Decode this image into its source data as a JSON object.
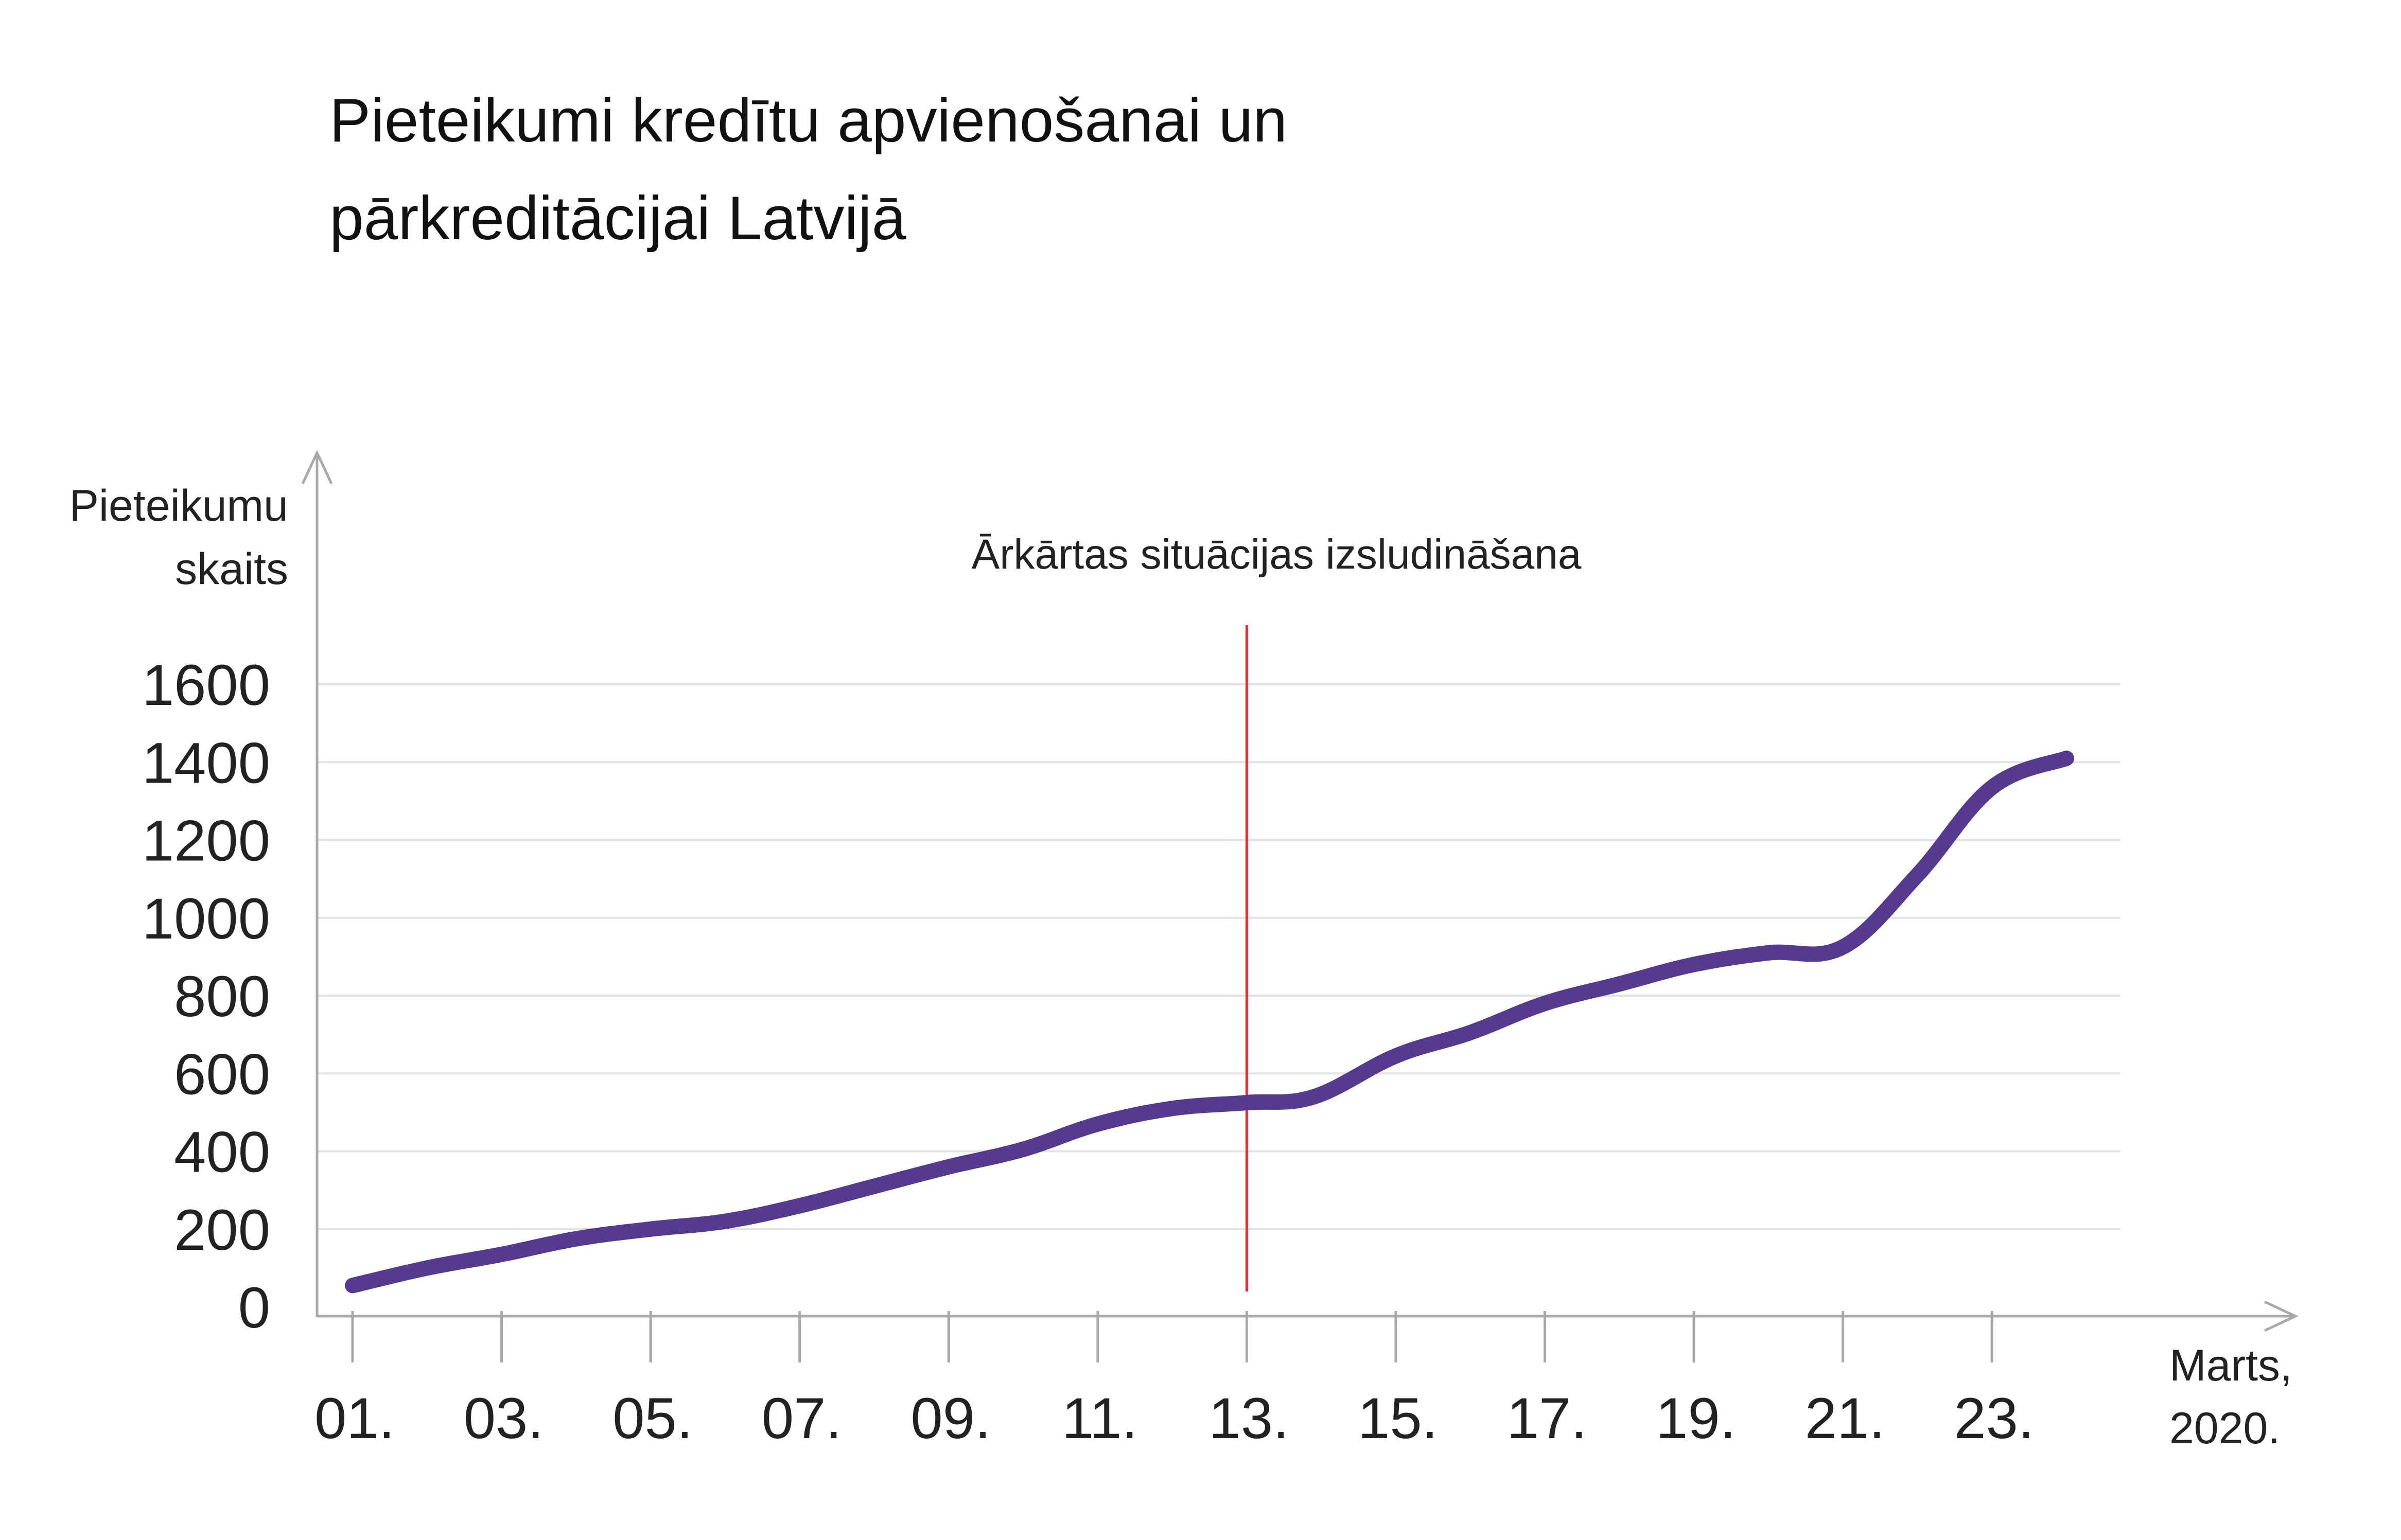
{
  "title_lines": [
    "Pieteikumi kredītu apvienošanai un",
    "pārkreditācijai Latvijā"
  ],
  "chart_data": {
    "type": "line",
    "title": "Pieteikumi kredītu apvienošanai un pārkreditācijai Latvijā",
    "ylabel_lines": [
      "Pieteikumu",
      "skaits"
    ],
    "xlabel_lines": [
      "Marts,",
      "2020."
    ],
    "ylim": [
      0,
      1600
    ],
    "yticks": [
      0,
      200,
      400,
      600,
      800,
      1000,
      1200,
      1400,
      1600
    ],
    "grid": true,
    "xlim": [
      1,
      24
    ],
    "xticks": [
      {
        "day": 1,
        "label": "01."
      },
      {
        "day": 3,
        "label": "03."
      },
      {
        "day": 5,
        "label": "05."
      },
      {
        "day": 7,
        "label": "07."
      },
      {
        "day": 9,
        "label": "09."
      },
      {
        "day": 11,
        "label": "11."
      },
      {
        "day": 13,
        "label": "13."
      },
      {
        "day": 15,
        "label": "15."
      },
      {
        "day": 17,
        "label": "17."
      },
      {
        "day": 19,
        "label": "19."
      },
      {
        "day": 21,
        "label": "21."
      },
      {
        "day": 23,
        "label": "23."
      }
    ],
    "series": [
      {
        "color": "#553a8f",
        "points": [
          {
            "x": 1,
            "y": 55
          },
          {
            "x": 2,
            "y": 100
          },
          {
            "x": 3,
            "y": 135
          },
          {
            "x": 4,
            "y": 175
          },
          {
            "x": 5,
            "y": 200
          },
          {
            "x": 6,
            "y": 220
          },
          {
            "x": 7,
            "y": 260
          },
          {
            "x": 8,
            "y": 310
          },
          {
            "x": 9,
            "y": 360
          },
          {
            "x": 10,
            "y": 405
          },
          {
            "x": 11,
            "y": 470
          },
          {
            "x": 12,
            "y": 510
          },
          {
            "x": 13,
            "y": 525
          },
          {
            "x": 13.9,
            "y": 540
          },
          {
            "x": 15,
            "y": 645
          },
          {
            "x": 16,
            "y": 705
          },
          {
            "x": 17,
            "y": 780
          },
          {
            "x": 18,
            "y": 830
          },
          {
            "x": 19,
            "y": 880
          },
          {
            "x": 20,
            "y": 910
          },
          {
            "x": 21,
            "y": 925
          },
          {
            "x": 22,
            "y": 1110
          },
          {
            "x": 23,
            "y": 1335
          },
          {
            "x": 24,
            "y": 1410
          }
        ]
      }
    ],
    "annotation": {
      "text": "Ārkārtas situācijas izsludināšana",
      "x": 13,
      "color": "#e0303a"
    },
    "axis_color": "#a8a8a8",
    "grid_color": "#e3e3e3",
    "text_color": "#222222"
  }
}
